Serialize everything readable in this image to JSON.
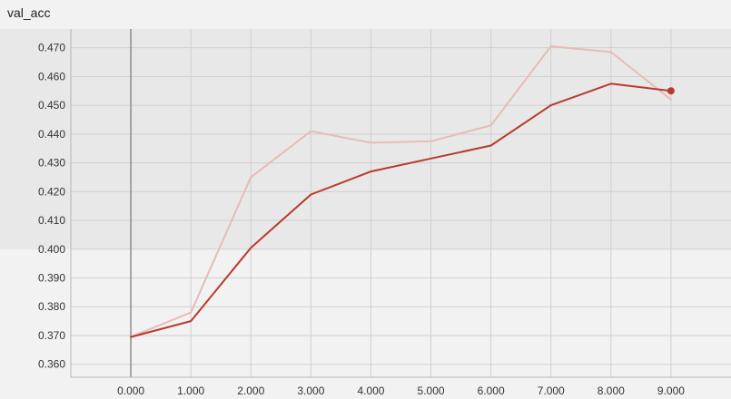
{
  "chart_data": {
    "type": "line",
    "title": "val_acc",
    "xlabel": "",
    "ylabel": "",
    "xlim": [
      -1.0,
      10.0
    ],
    "ylim": [
      0.3555,
      0.4765
    ],
    "x_ticks": [
      0,
      1,
      2,
      3,
      4,
      5,
      6,
      7,
      8,
      9
    ],
    "x_tick_labels": [
      "0.000",
      "1.000",
      "2.000",
      "3.000",
      "4.000",
      "5.000",
      "6.000",
      "7.000",
      "8.000",
      "9.000"
    ],
    "y_ticks": [
      0.36,
      0.37,
      0.38,
      0.39,
      0.4,
      0.41,
      0.42,
      0.43,
      0.44,
      0.45,
      0.46,
      0.47
    ],
    "y_tick_labels": [
      "0.360",
      "0.370",
      "0.380",
      "0.390",
      "0.400",
      "0.410",
      "0.420",
      "0.430",
      "0.440",
      "0.450",
      "0.460",
      "0.470"
    ],
    "grid": true,
    "series": [
      {
        "style": "raw",
        "x": [
          0,
          1,
          2,
          3,
          4,
          5,
          6,
          7,
          8,
          9
        ],
        "values": [
          0.3695,
          0.378,
          0.425,
          0.441,
          0.437,
          0.4375,
          0.443,
          0.4705,
          0.4685,
          0.452
        ]
      },
      {
        "style": "smoothed",
        "x": [
          0,
          1,
          2,
          3,
          4,
          5,
          6,
          7,
          8,
          9
        ],
        "values": [
          0.3695,
          0.375,
          0.4005,
          0.419,
          0.427,
          0.4315,
          0.436,
          0.45,
          0.4575,
          0.455
        ]
      }
    ],
    "colors": {
      "raw": "#e6bcb6",
      "smoothed": "#b83a2c",
      "grid": "#cfcfcf",
      "zero_line": "#8c8c8c",
      "background": "#f2f2f2",
      "upper_band": "#e8e8e8"
    }
  }
}
